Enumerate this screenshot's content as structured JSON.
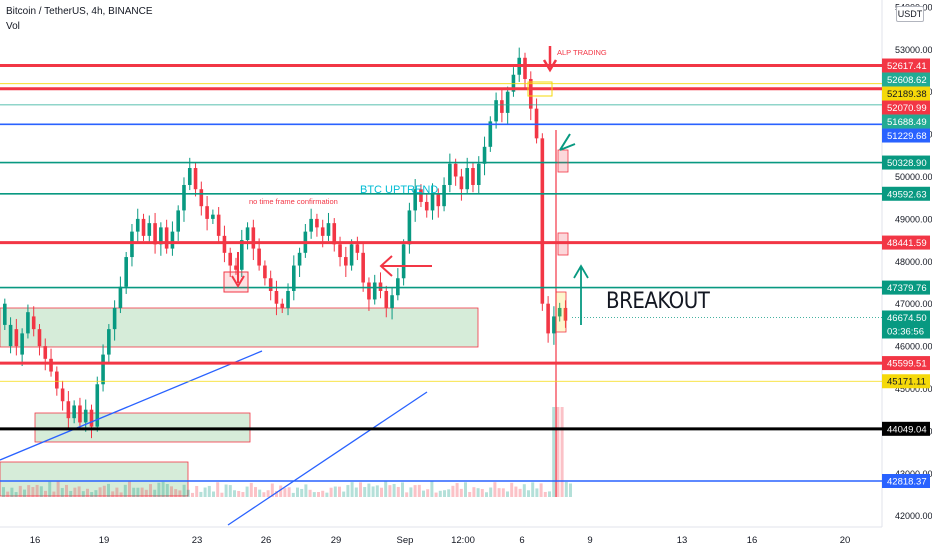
{
  "header": {
    "symbol": "Bitcoin / TetherUS, 4h, BINANCE",
    "volume_label": "Vol",
    "currency_button": "USDT"
  },
  "annotations": {
    "no_confirmation": "no time frame confirmation",
    "uptrend": "BTC  UPTREND",
    "breakout": "BREAKOUT",
    "author": "ALP TRADING"
  },
  "colors": {
    "red": "#f23645",
    "green": "#089981",
    "blue": "#2962ff",
    "yellow": "#f5d90a",
    "teal": "#22ab94",
    "black": "#000000",
    "zone_fill": "#d6ecd9"
  },
  "chart_data": {
    "type": "candlestick",
    "y_axis_ticks": [
      42000,
      43000,
      44000,
      45000,
      46000,
      47000,
      48000,
      49000,
      50000,
      51000,
      52000,
      53000,
      54000
    ],
    "x_axis_ticks": [
      "16",
      "19",
      "23",
      "26",
      "29",
      "Sep",
      "12:00",
      "6",
      "9",
      "13",
      "16",
      "20"
    ],
    "current_price": {
      "value": "46674.50",
      "countdown": "03:36:56"
    },
    "horizontal_levels": [
      {
        "value": "52617.41",
        "color": "red"
      },
      {
        "value": "52608.62",
        "color": "teal"
      },
      {
        "value": "52189.38",
        "color": "yellow"
      },
      {
        "value": "52070.99",
        "color": "red"
      },
      {
        "value": "51688.49",
        "color": "teal"
      },
      {
        "value": "51229.68",
        "color": "blue"
      },
      {
        "value": "50328.90",
        "color": "green"
      },
      {
        "value": "49592.63",
        "color": "green"
      },
      {
        "value": "48441.59",
        "color": "red"
      },
      {
        "value": "47379.76",
        "color": "green"
      },
      {
        "value": "45599.51",
        "color": "red"
      },
      {
        "value": "45171.11",
        "color": "yellow"
      },
      {
        "value": "44049.04",
        "color": "black"
      },
      {
        "value": "42818.37",
        "color": "blue"
      }
    ],
    "price_path": [
      [
        46500,
        47000
      ],
      [
        46000,
        46500
      ],
      [
        46400,
        46000
      ],
      [
        45800,
        46300
      ],
      [
        46300,
        46800
      ],
      [
        46700,
        46400
      ],
      [
        46400,
        46000
      ],
      [
        46000,
        45700
      ],
      [
        45700,
        45400
      ],
      [
        45400,
        45000
      ],
      [
        45000,
        44700
      ],
      [
        44700,
        44300
      ],
      [
        44300,
        44600
      ],
      [
        44600,
        44200
      ],
      [
        44200,
        44500
      ],
      [
        44500,
        44100
      ],
      [
        44100,
        45100
      ],
      [
        45100,
        45800
      ],
      [
        45800,
        46400
      ],
      [
        46400,
        46900
      ],
      [
        46900,
        47400
      ],
      [
        47400,
        48100
      ],
      [
        48100,
        48700
      ],
      [
        48700,
        49000
      ],
      [
        49000,
        48600
      ],
      [
        48600,
        48900
      ],
      [
        48900,
        48400
      ],
      [
        48400,
        48800
      ],
      [
        48800,
        48300
      ],
      [
        48300,
        48700
      ],
      [
        48700,
        49200
      ],
      [
        49200,
        49800
      ],
      [
        49800,
        50200
      ],
      [
        50200,
        49700
      ],
      [
        49700,
        49300
      ],
      [
        49300,
        49000
      ],
      [
        49000,
        49100
      ],
      [
        49100,
        48600
      ],
      [
        48600,
        48200
      ],
      [
        48200,
        47900
      ],
      [
        47900,
        47800
      ],
      [
        47800,
        48500
      ],
      [
        48500,
        48800
      ],
      [
        48800,
        48300
      ],
      [
        48300,
        47900
      ],
      [
        47900,
        47600
      ],
      [
        47600,
        47300
      ],
      [
        47300,
        47000
      ],
      [
        47000,
        46900
      ],
      [
        46900,
        47300
      ],
      [
        47300,
        47900
      ],
      [
        47900,
        48200
      ],
      [
        48200,
        48700
      ],
      [
        48700,
        49000
      ],
      [
        49000,
        48800
      ],
      [
        48800,
        48600
      ],
      [
        48600,
        48900
      ],
      [
        48900,
        48400
      ],
      [
        48400,
        48100
      ],
      [
        48100,
        47900
      ],
      [
        47900,
        48400
      ],
      [
        48400,
        48200
      ],
      [
        48200,
        47500
      ],
      [
        47500,
        47100
      ],
      [
        47100,
        47500
      ],
      [
        47500,
        47300
      ],
      [
        47300,
        46900
      ],
      [
        46900,
        47200
      ],
      [
        47200,
        47600
      ],
      [
        47600,
        48400
      ],
      [
        48400,
        49200
      ],
      [
        49200,
        49700
      ],
      [
        49700,
        49400
      ],
      [
        49400,
        49200
      ],
      [
        49200,
        49600
      ],
      [
        49600,
        49300
      ],
      [
        49300,
        49800
      ],
      [
        49800,
        50300
      ],
      [
        50300,
        50000
      ],
      [
        50000,
        49700
      ],
      [
        49700,
        50200
      ],
      [
        50200,
        49800
      ],
      [
        49800,
        50300
      ],
      [
        50300,
        50700
      ],
      [
        50700,
        51300
      ],
      [
        51300,
        51800
      ],
      [
        51800,
        51500
      ],
      [
        51500,
        52000
      ],
      [
        52000,
        52400
      ],
      [
        52400,
        52800
      ],
      [
        52800,
        52300
      ],
      [
        52300,
        51600
      ],
      [
        51600,
        50900
      ],
      [
        50900,
        47000
      ],
      [
        47000,
        46300
      ],
      [
        46300,
        46700
      ],
      [
        46700,
        46900
      ],
      [
        46900,
        46600
      ]
    ]
  }
}
